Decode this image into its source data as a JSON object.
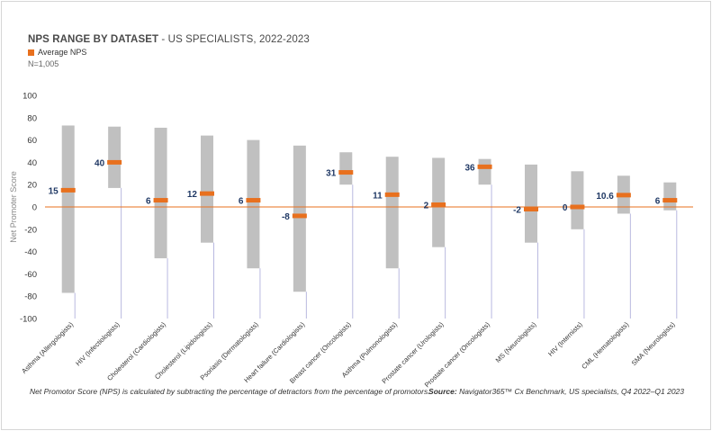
{
  "title": {
    "bold": "NPS RANGE BY DATASET",
    "separator": " - ",
    "rest": "US SPECIALISTS, 2022-2023"
  },
  "legend": {
    "label": "Average NPS"
  },
  "sample_size": "N=1,005",
  "footnote": "Net Promotor Score (NPS) is calculated by subtracting the percentage of detractors from the percentage of promotors.",
  "source": {
    "label": "Source:",
    "text": " Navigator365™ Cx Benchmark, US specialists, Q4 2022–Q1 2023"
  },
  "colors": {
    "range_bar": "#c0c0c0",
    "average_marker": "#e8701e",
    "zero_line": "#e8701e",
    "label_text": "#1f3864",
    "stem": "#b9b9e0",
    "axis_text": "#333333"
  },
  "chart_data": {
    "type": "range-bar",
    "title": "NPS RANGE BY DATASET - US SPECIALISTS, 2022-2023",
    "ylabel": "Net Promoter Score",
    "xlabel": "",
    "ylim": [
      -100,
      100
    ],
    "yticks": [
      100,
      80,
      60,
      40,
      20,
      0,
      -20,
      -40,
      -60,
      -80,
      -100
    ],
    "ytick_labels": [
      "100",
      "80",
      "60",
      "40",
      "20",
      "0",
      "-20",
      "-40",
      "-60",
      "-80",
      "-100"
    ],
    "categories": [
      "Asthma (Allergologists)",
      "HIV (Infectiologists)",
      "Cholesterol (Cardiologists)",
      "Cholesterol (Lipidologists)",
      "Psoriasis (Dermatologists)",
      "Heart failure (Cardiologists)",
      "Breast cancer (Oncologists)",
      "Asthma (Pulmonologists)",
      "Prostate cancer (Urologists)",
      "Prostate cancer (Oncologists)",
      "MS (Neurologists)",
      "HIV (Internists)",
      "CML (Hematologists)",
      "SMA (Neurologists)"
    ],
    "series": [
      {
        "name": "Max NPS",
        "values": [
          73,
          72,
          71,
          64,
          60,
          55,
          49,
          45,
          44,
          43,
          38,
          32,
          28,
          22
        ]
      },
      {
        "name": "Min NPS",
        "values": [
          -77,
          17,
          -46,
          -32,
          -55,
          -76,
          20,
          -55,
          -36,
          20,
          -32,
          -20,
          -6,
          -3
        ]
      },
      {
        "name": "Average NPS",
        "values": [
          15,
          40,
          6,
          12,
          6,
          -8,
          31,
          11,
          2,
          36,
          -2,
          0,
          10.6,
          6
        ]
      }
    ],
    "average_labels": [
      "15",
      "40",
      "6",
      "12",
      "6",
      "-8",
      "31",
      "11",
      "2",
      "36",
      "-2",
      "0",
      "10.6",
      "6"
    ],
    "grid": false,
    "legend_position": "top-left"
  }
}
